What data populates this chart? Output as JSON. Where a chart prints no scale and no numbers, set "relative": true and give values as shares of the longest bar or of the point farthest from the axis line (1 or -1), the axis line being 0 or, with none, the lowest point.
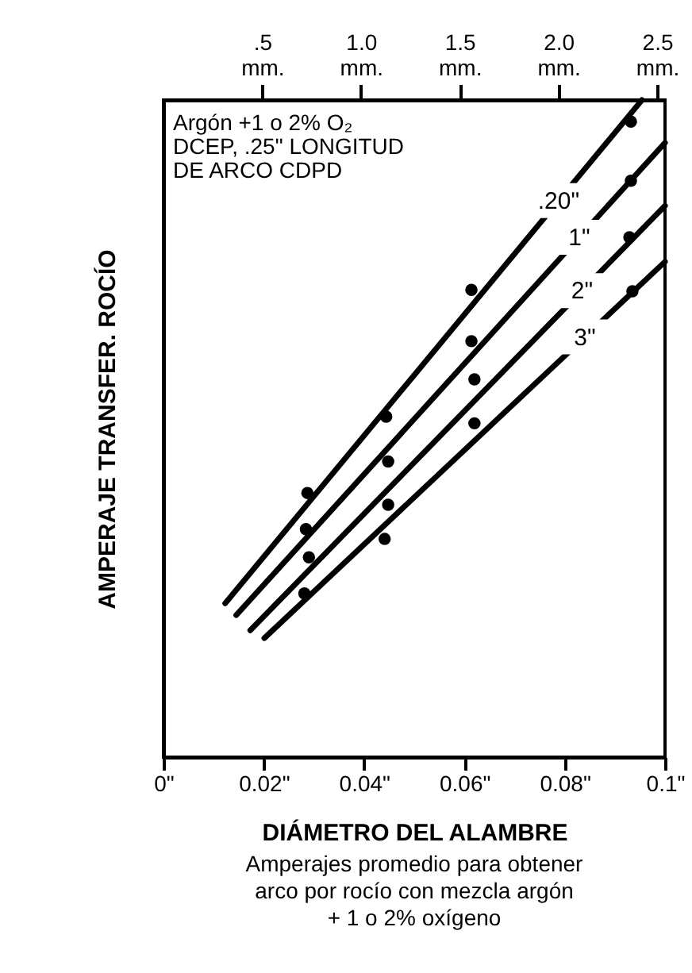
{
  "chart_data": {
    "type": "scatter",
    "relative": true,
    "xlabel": "DIÁMETRO DEL ALAMBRE",
    "ylabel": "AMPERAJE TRANSFER. ROCÍO",
    "annotations": [
      "Argón +1 o 2% O₂\nDCEP, .25\" LONGITUD\nDE ARCO CDPD",
      "Amperajes promedio para obtener\narco por rocío con mezcla argón\n+ 1 o 2% oxígeno"
    ],
    "xlim": [
      0,
      0.1
    ],
    "xticks": [
      {
        "value": 0,
        "label": "0\""
      },
      {
        "value": 0.02,
        "label": "0.02\""
      },
      {
        "value": 0.04,
        "label": "0.04\""
      },
      {
        "value": 0.06,
        "label": "0.06\""
      },
      {
        "value": 0.08,
        "label": "0.08\""
      },
      {
        "value": 0.1,
        "label": "0.1\""
      }
    ],
    "x2lim": [
      0,
      2.54
    ],
    "x2ticks": [
      {
        "value": 0.5,
        "label": ".5 mm."
      },
      {
        "value": 1.0,
        "label": "1.0 mm."
      },
      {
        "value": 1.5,
        "label": "1.5 mm."
      },
      {
        "value": 2.0,
        "label": "2.0 mm."
      },
      {
        "value": 2.5,
        "label": "2.5 mm."
      }
    ],
    "marker": "circle",
    "grid": false,
    "series": [
      {
        "color": "#000000",
        "x": [
          0.0287,
          0.0444,
          0.0614,
          0.0932
        ],
        "values": [
          0.402,
          0.518,
          0.711,
          0.967
        ]
      },
      {
        "color": "#000000",
        "x": [
          0.0284,
          0.0448,
          0.0614,
          0.0932
        ],
        "values": [
          0.347,
          0.45,
          0.633,
          0.877
        ]
      },
      {
        "color": "#000000",
        "x": [
          0.029,
          0.0448,
          0.062,
          0.0929
        ],
        "values": [
          0.304,
          0.384,
          0.575,
          0.791
        ]
      },
      {
        "color": "#000000",
        "x": [
          0.0281,
          0.0441,
          0.062,
          0.0935
        ],
        "values": [
          0.249,
          0.332,
          0.508,
          0.709
        ]
      },
      {
        "type": "line",
        "marker": "none",
        "name": ".20\"",
        "color": "#000000",
        "x": [
          0.0123,
          0.0954
        ],
        "values": [
          0.234,
          1
        ]
      },
      {
        "type": "line",
        "marker": "none",
        "name": "1\"",
        "color": "#000000",
        "x": [
          0.0145,
          0.1
        ],
        "values": [
          0.216,
          0.935
        ]
      },
      {
        "type": "line",
        "marker": "none",
        "name": "2\"",
        "color": "#000000",
        "x": [
          0.0173,
          0.1
        ],
        "values": [
          0.193,
          0.839
        ]
      },
      {
        "type": "line",
        "marker": "none",
        "name": "3\"",
        "color": "#000000",
        "x": [
          0.0201,
          0.1
        ],
        "values": [
          0.181,
          0.754
        ]
      }
    ]
  }
}
